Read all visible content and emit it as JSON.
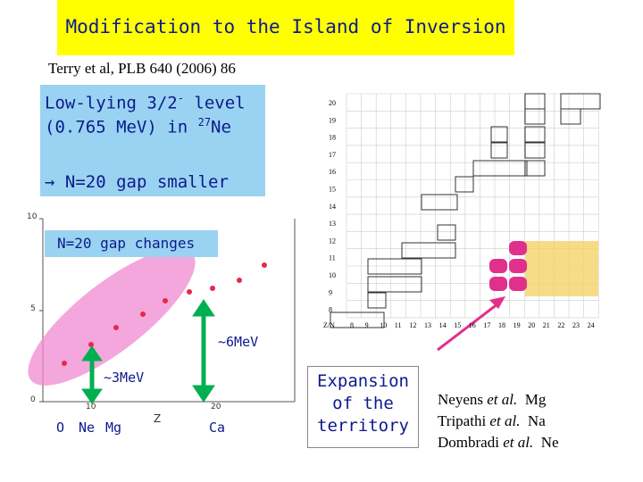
{
  "title": "Modification to the Island of Inversion",
  "citation": "Terry et al, PLB 640 (2006) 86",
  "info_box": {
    "line1_pre": "Low-lying 3/2",
    "line1_sup": "-",
    "line1_post": " level",
    "line2_pre": "(0.765 MeV) in ",
    "line2_sup": "27",
    "line2_post": "Ne",
    "arrow_text": "N=20 gap smaller"
  },
  "gap_plot": {
    "label": "N=20 gap changes",
    "y_ticks": [
      "10",
      "5",
      "0"
    ],
    "x_ticks": [
      "10",
      "20"
    ],
    "x_label": "Z",
    "annotation_big": "~6MeV",
    "annotation_small": "~3MeV",
    "bottom_labels": [
      "O",
      "Ne",
      "Mg",
      "Ca"
    ]
  },
  "expansion": [
    "Expansion",
    "of the",
    "territory"
  ],
  "references": [
    {
      "name": "Neyens",
      "etal": "et al.",
      "nucleus": "Mg"
    },
    {
      "name": "Tripathi",
      "etal": "et al.",
      "nucleus": "Na"
    },
    {
      "name": "Dombradi",
      "etal": "et al.",
      "nucleus": "Ne"
    }
  ],
  "chart": {
    "corner": "Z/N",
    "z_labels": [
      "20",
      "19",
      "18",
      "17",
      "16",
      "15",
      "14",
      "13",
      "12",
      "11",
      "10",
      "9",
      "8"
    ],
    "n_labels": [
      "8",
      "9",
      "10",
      "11",
      "12",
      "13",
      "14",
      "15",
      "16",
      "17",
      "18",
      "19",
      "20",
      "21",
      "22",
      "23",
      "24"
    ]
  },
  "colors": {
    "title_bg": "#ffff00",
    "info_bg": "#9ad3f1",
    "text_blue": "#0d1a8c",
    "red_points": "#e8284a",
    "ellipse": "#f08ad0",
    "arrow_green": "#00b050",
    "highlight": "#f5d36a",
    "magenta": "#e0308c"
  }
}
